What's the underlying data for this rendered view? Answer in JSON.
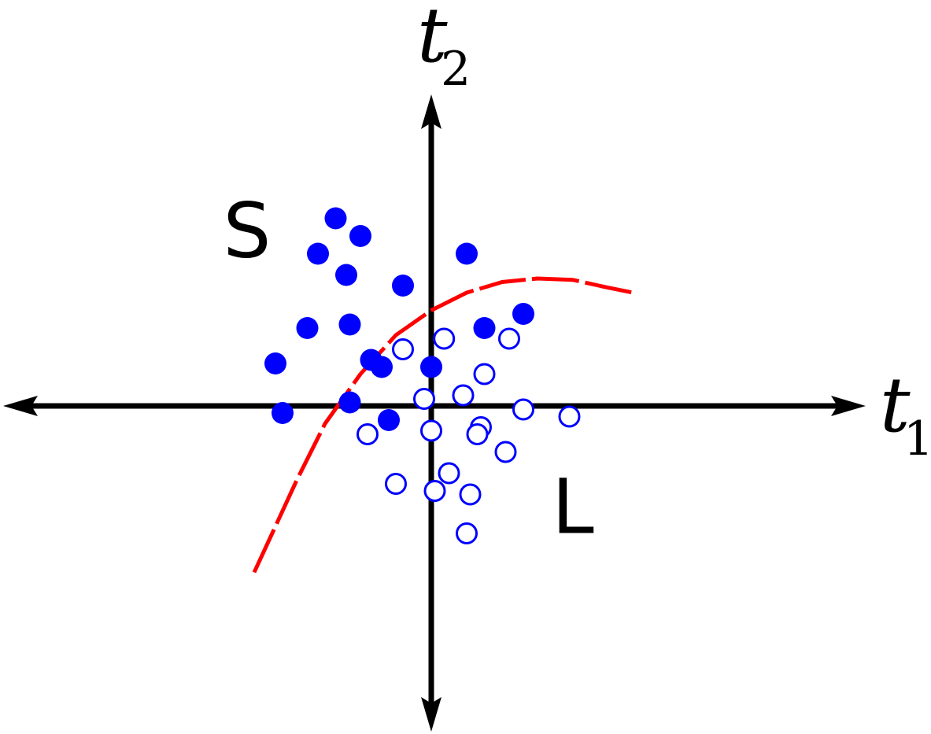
{
  "chart_data": {
    "type": "scatter",
    "title": "",
    "xlabel": {
      "symbol": "t",
      "subscript": "1"
    },
    "ylabel": {
      "symbol": "t",
      "subscript": "2"
    },
    "xlim": [
      -5.8,
      5.8
    ],
    "ylim": [
      -4.3,
      4.3
    ],
    "grid": false,
    "legend": "none",
    "regions": [
      {
        "label": "S",
        "x": -2.6,
        "y": 2.4
      },
      {
        "label": "L",
        "x": 2.0,
        "y": -1.5
      }
    ],
    "series": [
      {
        "marker": "filled-circle",
        "color": "#0000ff",
        "points": [
          [
            -1.35,
            2.65
          ],
          [
            -1.0,
            2.4
          ],
          [
            -1.6,
            2.15
          ],
          [
            0.5,
            2.15
          ],
          [
            -1.2,
            1.85
          ],
          [
            -0.4,
            1.7
          ],
          [
            1.3,
            1.3
          ],
          [
            -1.75,
            1.1
          ],
          [
            -1.15,
            1.15
          ],
          [
            0.75,
            1.1
          ],
          [
            -2.2,
            0.6
          ],
          [
            -0.85,
            0.65
          ],
          [
            -0.7,
            0.55
          ],
          [
            0.0,
            0.55
          ],
          [
            -1.15,
            0.05
          ],
          [
            -2.1,
            -0.1
          ],
          [
            -0.6,
            -0.2
          ]
        ]
      },
      {
        "marker": "open-circle",
        "color": "#0000ff",
        "points": [
          [
            0.18,
            0.95
          ],
          [
            1.1,
            0.95
          ],
          [
            -0.4,
            0.8
          ],
          [
            0.75,
            0.45
          ],
          [
            0.45,
            0.15
          ],
          [
            -0.1,
            0.1
          ],
          [
            1.3,
            -0.05
          ],
          [
            1.95,
            -0.15
          ],
          [
            0.7,
            -0.3
          ],
          [
            0.0,
            -0.35
          ],
          [
            0.65,
            -0.4
          ],
          [
            -0.9,
            -0.4
          ],
          [
            1.05,
            -0.65
          ],
          [
            0.25,
            -0.95
          ],
          [
            -0.5,
            -1.1
          ],
          [
            0.05,
            -1.2
          ],
          [
            0.55,
            -1.25
          ],
          [
            0.5,
            -1.8
          ]
        ]
      }
    ],
    "boundary": {
      "color": "#ff0000",
      "style": "dashed",
      "points": [
        [
          -2.5,
          -2.35
        ],
        [
          -2.2,
          -1.7
        ],
        [
          -1.9,
          -1.05
        ],
        [
          -1.5,
          -0.25
        ],
        [
          -1.0,
          0.45
        ],
        [
          -0.5,
          1.0
        ],
        [
          0.0,
          1.35
        ],
        [
          0.5,
          1.6
        ],
        [
          1.0,
          1.75
        ],
        [
          1.5,
          1.8
        ],
        [
          2.0,
          1.78
        ],
        [
          2.5,
          1.67
        ],
        [
          2.85,
          1.6
        ]
      ]
    }
  }
}
